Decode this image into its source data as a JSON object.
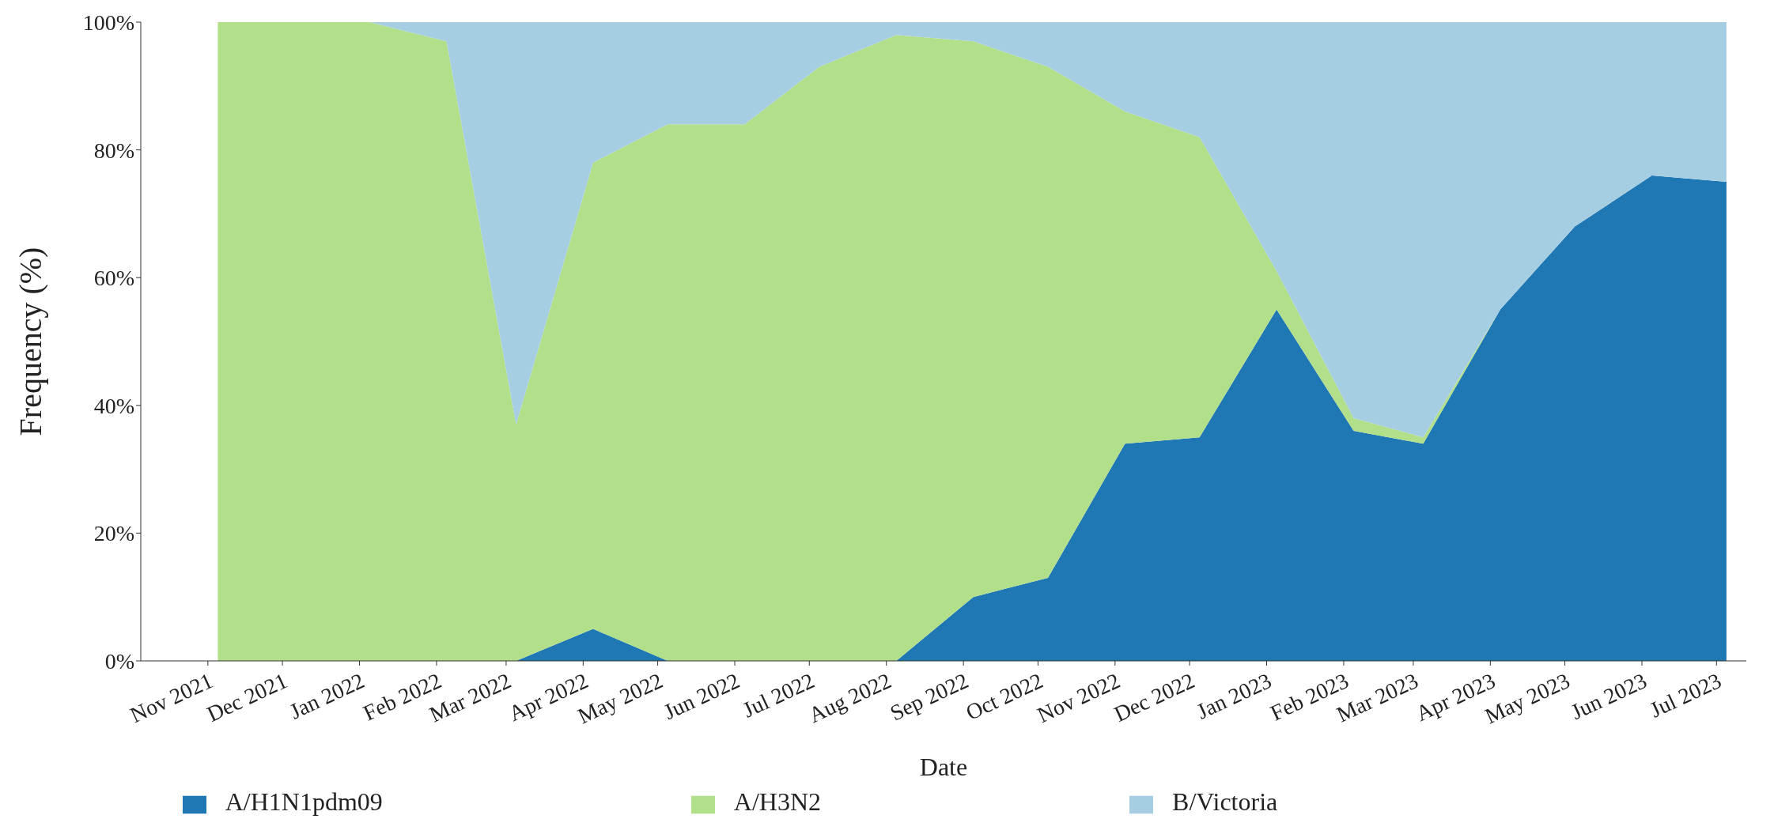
{
  "chart_data": {
    "type": "area",
    "stacked": true,
    "xlabel": "Date",
    "ylabel": "Frequency (%)",
    "x": [
      "2021-11-05",
      "2021-12-05",
      "2022-01-05",
      "2022-02-05",
      "2022-03-05",
      "2022-04-05",
      "2022-05-05",
      "2022-06-05",
      "2022-07-05",
      "2022-08-05",
      "2022-09-05",
      "2022-10-05",
      "2022-11-05",
      "2022-12-05",
      "2023-01-05",
      "2023-02-05",
      "2023-03-05",
      "2023-04-05",
      "2023-05-05",
      "2023-06-05",
      "2023-07-05"
    ],
    "series": [
      {
        "name": "A/H1N1pdm09",
        "color": "#1f77b4",
        "values": [
          0,
          0,
          0,
          0,
          0,
          5,
          0,
          0,
          0,
          0,
          10,
          13,
          34,
          35,
          55,
          36,
          34,
          55,
          68,
          76,
          75
        ]
      },
      {
        "name": "A/H3N2",
        "color": "#b2df8a",
        "values": [
          100,
          100,
          100,
          97,
          37,
          73,
          84,
          84,
          93,
          98,
          87,
          80,
          52,
          47,
          6,
          2,
          1,
          0,
          0,
          0,
          0
        ]
      },
      {
        "name": "B/Victoria",
        "color": "#a6cee3",
        "values": [
          0,
          0,
          0,
          3,
          63,
          22,
          16,
          16,
          7,
          2,
          3,
          7,
          14,
          18,
          39,
          62,
          65,
          45,
          32,
          24,
          25
        ]
      }
    ],
    "ylim": [
      0,
      100
    ],
    "yticks": [
      {
        "value": 0,
        "label": "0%"
      },
      {
        "value": 20,
        "label": "20%"
      },
      {
        "value": 40,
        "label": "40%"
      },
      {
        "value": 60,
        "label": "60%"
      },
      {
        "value": 80,
        "label": "80%"
      },
      {
        "value": 100,
        "label": "100%"
      }
    ],
    "xlim": [
      "2021-10-05",
      "2023-07-13"
    ],
    "xticks": [
      {
        "value": "2021-11-01",
        "label": "Nov 2021"
      },
      {
        "value": "2021-12-01",
        "label": "Dec 2021"
      },
      {
        "value": "2022-01-01",
        "label": "Jan 2022"
      },
      {
        "value": "2022-02-01",
        "label": "Feb 2022"
      },
      {
        "value": "2022-03-01",
        "label": "Mar 2022"
      },
      {
        "value": "2022-04-01",
        "label": "Apr 2022"
      },
      {
        "value": "2022-05-01",
        "label": "May 2022"
      },
      {
        "value": "2022-06-01",
        "label": "Jun 2022"
      },
      {
        "value": "2022-07-01",
        "label": "Jul 2022"
      },
      {
        "value": "2022-08-01",
        "label": "Aug 2022"
      },
      {
        "value": "2022-09-01",
        "label": "Sep 2022"
      },
      {
        "value": "2022-10-01",
        "label": "Oct 2022"
      },
      {
        "value": "2022-11-01",
        "label": "Nov 2022"
      },
      {
        "value": "2022-12-01",
        "label": "Dec 2022"
      },
      {
        "value": "2023-01-01",
        "label": "Jan 2023"
      },
      {
        "value": "2023-02-01",
        "label": "Feb 2023"
      },
      {
        "value": "2023-03-01",
        "label": "Mar 2023"
      },
      {
        "value": "2023-04-01",
        "label": "Apr 2023"
      },
      {
        "value": "2023-05-01",
        "label": "May 2023"
      },
      {
        "value": "2023-06-01",
        "label": "Jun 2023"
      },
      {
        "value": "2023-07-01",
        "label": "Jul 2023"
      }
    ],
    "grid": false,
    "legend": "bottom"
  }
}
